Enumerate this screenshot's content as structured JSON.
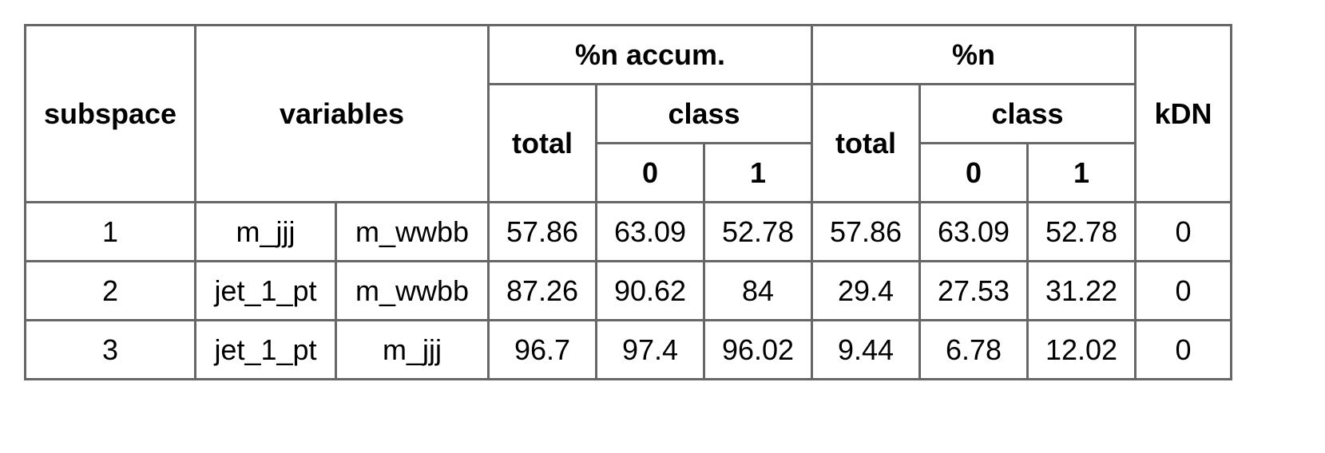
{
  "table": {
    "headers": {
      "subspace": "subspace",
      "variables": "variables",
      "n_accum": "%n accum.",
      "n": "%n",
      "kdn": "kDN",
      "total": "total",
      "class": "class",
      "class_0": "0",
      "class_1": "1"
    },
    "rows": [
      {
        "subspace": "1",
        "var_a": "m_jjj",
        "var_b": "m_wwbb",
        "accum_total": "57.86",
        "accum_c0": "63.09",
        "accum_c1": "52.78",
        "n_total": "57.86",
        "n_c0": "63.09",
        "n_c1": "52.78",
        "kdn": "0"
      },
      {
        "subspace": "2",
        "var_a": "jet_1_pt",
        "var_b": "m_wwbb",
        "accum_total": "87.26",
        "accum_c0": "90.62",
        "accum_c1": "84",
        "n_total": "29.4",
        "n_c0": "27.53",
        "n_c1": "31.22",
        "kdn": "0"
      },
      {
        "subspace": "3",
        "var_a": "jet_1_pt",
        "var_b": "m_jjj",
        "accum_total": "96.7",
        "accum_c0": "97.4",
        "accum_c1": "96.02",
        "n_total": "9.44",
        "n_c0": "6.78",
        "n_c1": "12.02",
        "kdn": "0"
      }
    ]
  }
}
